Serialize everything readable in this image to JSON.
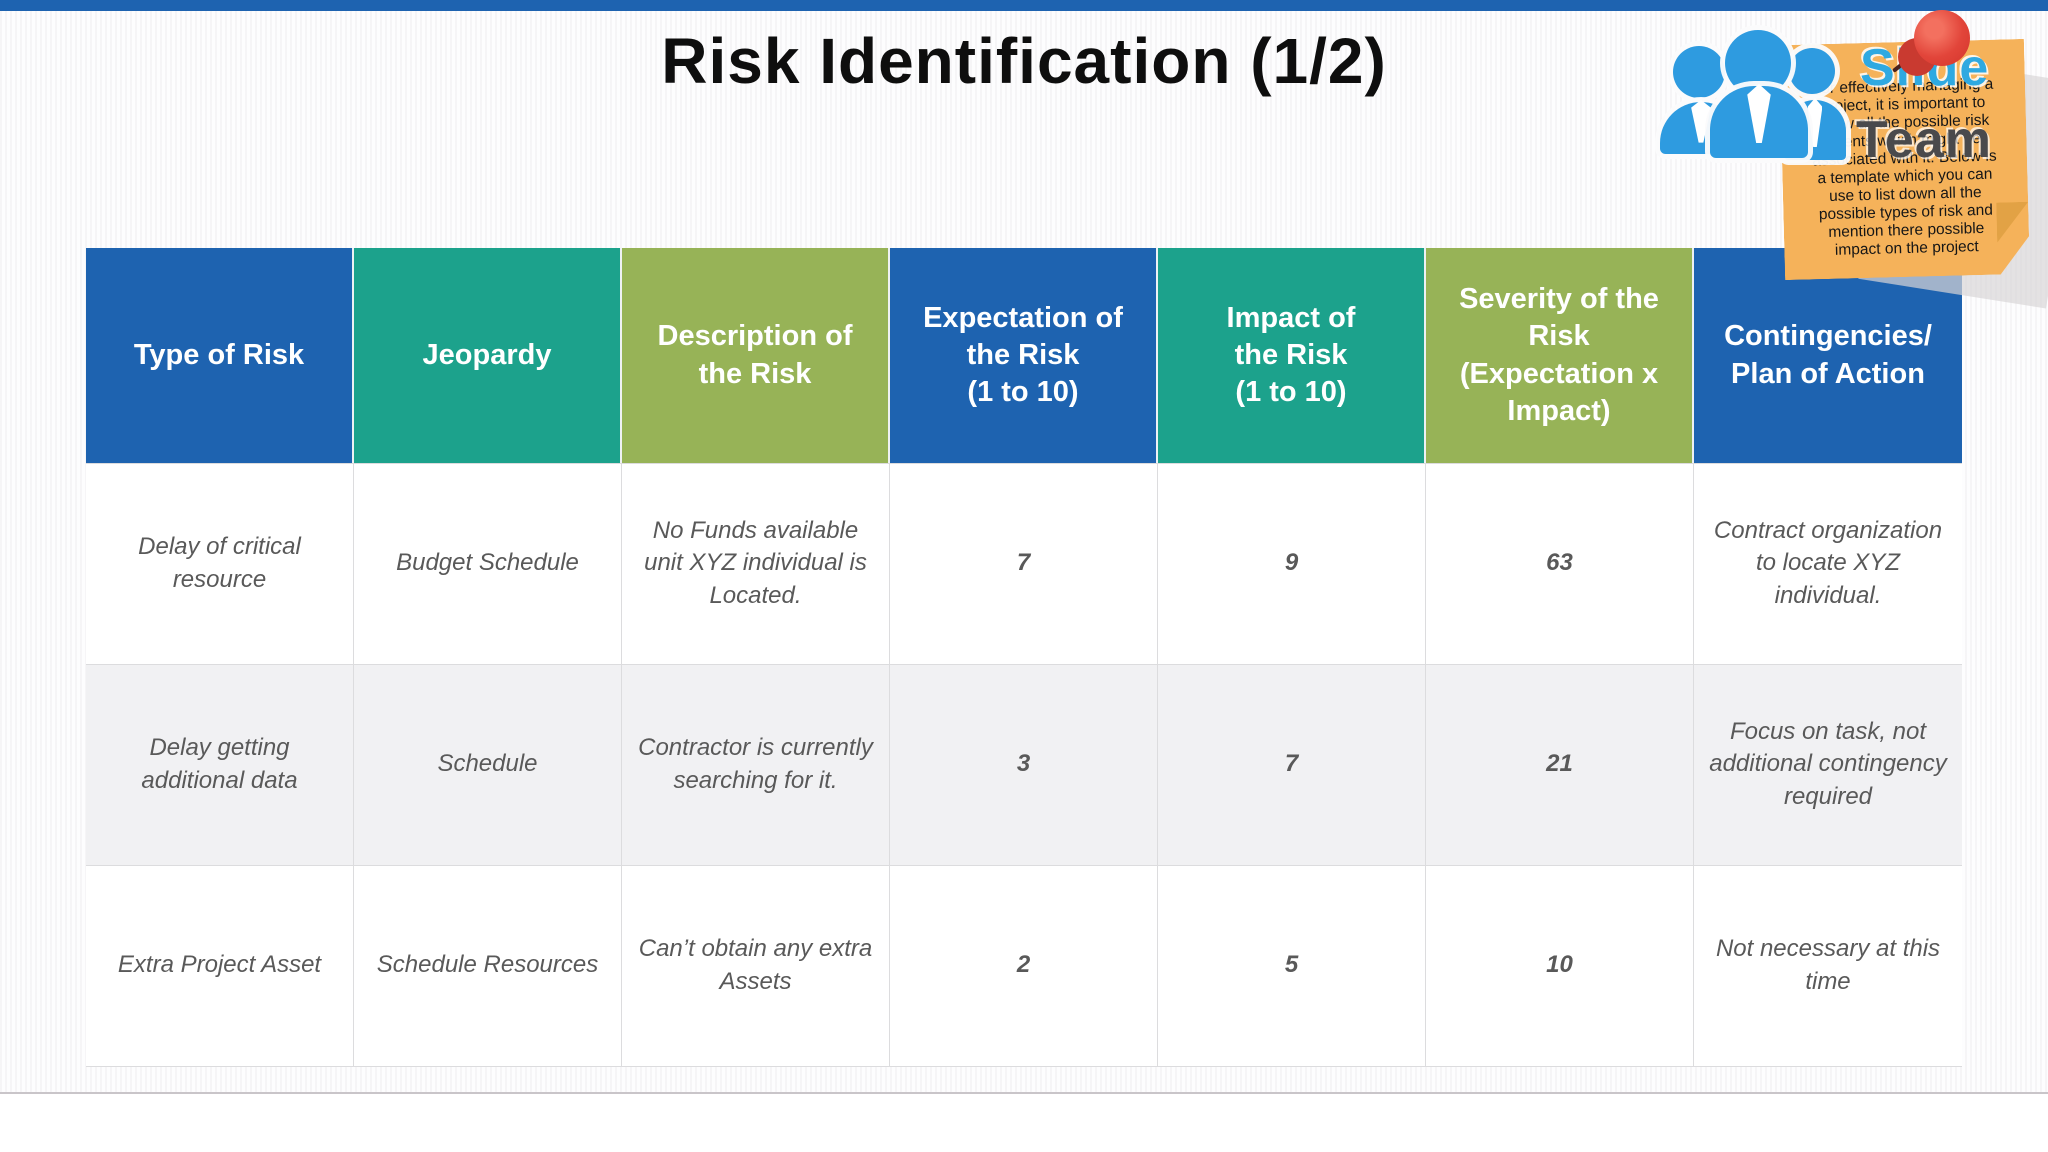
{
  "slide": {
    "title": "Risk Identification (1/2)"
  },
  "theme": {
    "top_bar_color": "#1E63B0",
    "header_blue": "#1E63B0",
    "header_teal": "#1CA28C",
    "header_olive": "#97B357",
    "row_alt_bg": "#F1F1F3",
    "body_text_color": "#595959",
    "divider_color": "#C9C5C9"
  },
  "logo": {
    "brand_slide": "Slide",
    "brand_team": "Team",
    "brand_slide_color": "#2FA9E1",
    "brand_team_color": "#4A4A4C",
    "people_icon_color": "#2E9BE0",
    "note_bg_color": "#F5B25A",
    "pin_color": "#E2453A",
    "note_text": "For effectively managing a\nproject, it is important to\nknow all the possible risk\nevents which might be\nassociated with it. Below is\na template which you can\nuse to list down all the\npossible types of risk and\nmention there possible\nimpact on the project"
  },
  "table": {
    "columns": [
      {
        "label": "Type of Risk",
        "color": "#1E63B0"
      },
      {
        "label": "Jeopardy",
        "color": "#1CA28C"
      },
      {
        "label": "Description of\nthe Risk",
        "color": "#97B357"
      },
      {
        "label": "Expectation of\nthe Risk\n(1 to 10)",
        "color": "#1E63B0"
      },
      {
        "label": "Impact of\nthe Risk\n(1 to 10)",
        "color": "#1CA28C"
      },
      {
        "label": "Severity of the\nRisk\n(Expectation x\nImpact)",
        "color": "#97B357"
      },
      {
        "label": "Contingencies/\nPlan of Action",
        "color": "#1E63B0"
      }
    ],
    "rows": [
      {
        "cells": [
          "Delay of critical\nresource",
          "Budget Schedule",
          "No Funds available\nunit XYZ individual is\nLocated.",
          "7",
          "9",
          "63",
          "Contract organization\nto locate XYZ\nindividual."
        ]
      },
      {
        "cells": [
          "Delay getting\nadditional data",
          "Schedule",
          "Contractor is currently\nsearching for it.",
          "3",
          "7",
          "21",
          "Focus on task, not\nadditional contingency\nrequired"
        ]
      },
      {
        "cells": [
          "Extra Project Asset",
          "Schedule Resources",
          "Can’t obtain any extra\nAssets",
          "2",
          "5",
          "10",
          "Not necessary at this\ntime"
        ]
      }
    ]
  }
}
